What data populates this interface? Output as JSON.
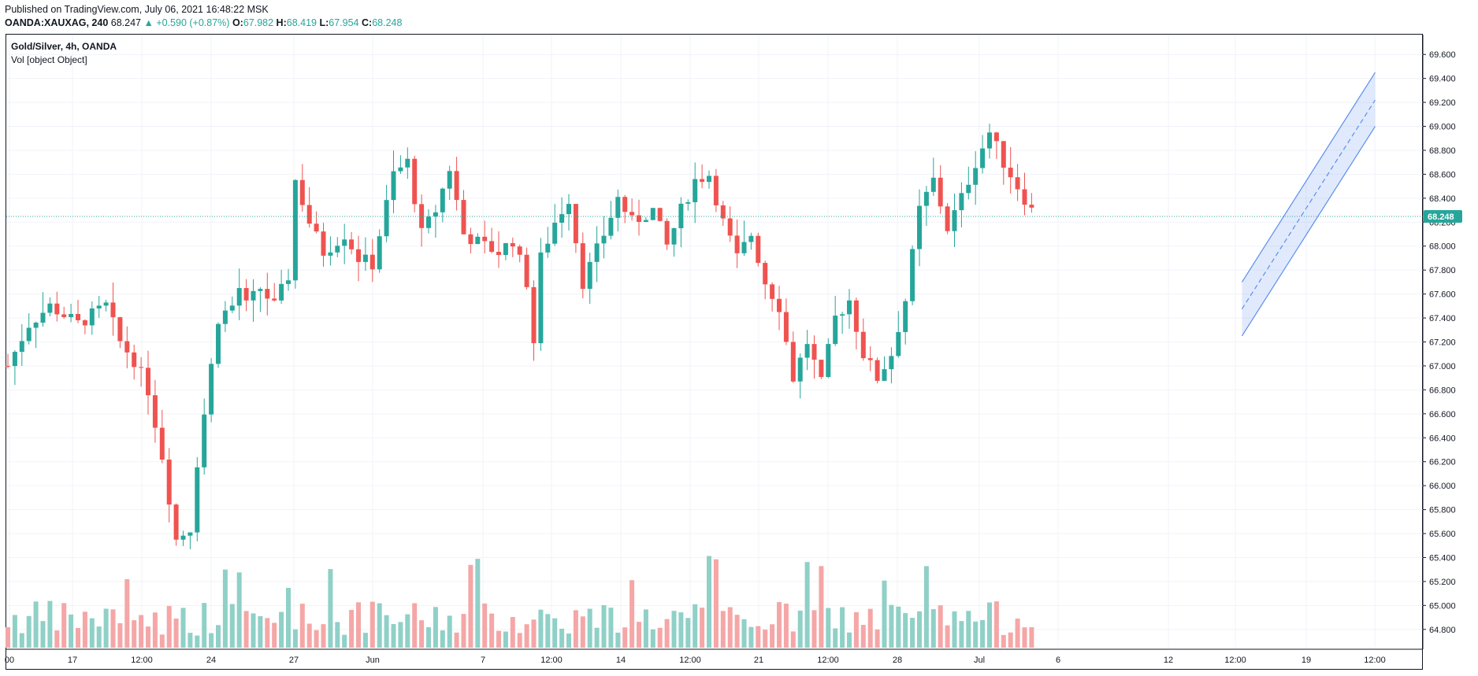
{
  "header": {
    "published": "Published on TradingView.com, July 06, 2021 16:48:22 MSK",
    "symbol": "OANDA:XAUXAG, 240",
    "last": "68.247",
    "change": "▲ +0.590 (+0.87%)",
    "o_label": "O:",
    "o": "67.982",
    "h_label": "H:",
    "h": "68.419",
    "l_label": "L:",
    "l": "67.954",
    "c_label": "C:",
    "c": "68.248"
  },
  "legend": {
    "title": "Gold/Silver, 4h, OANDA",
    "volume": "Vol [object Object]"
  },
  "colors": {
    "up": "#26a69a",
    "down": "#ef5350",
    "up_volume": "#8fd0c7",
    "down_volume": "#f5a6a6",
    "price_line": "#26a69a",
    "channel": "#5b8def",
    "grid": "#f0f3fa"
  },
  "chart_data": {
    "type": "candlestick",
    "interval": "4h",
    "ylim": [
      64.7,
      69.7
    ],
    "y_ticks": [
      "69.600",
      "69.400",
      "69.200",
      "69.000",
      "68.800",
      "68.600",
      "68.400",
      "68.200",
      "68.000",
      "67.800",
      "67.600",
      "67.400",
      "67.200",
      "67.000",
      "66.800",
      "66.600",
      "66.400",
      "66.200",
      "66.000",
      "65.800",
      "65.600",
      "65.400",
      "65.200",
      "65.000",
      "64.800"
    ],
    "x_ticks": [
      "00",
      "17",
      "12:00",
      "24",
      "27",
      "Jun",
      "7",
      "12:00",
      "14",
      "12:00",
      "21",
      "12:00",
      "28",
      "Jul",
      "6",
      "12",
      "12:00",
      "19",
      "12:00"
    ],
    "last_price": "68.248",
    "grid": true,
    "candles_count": 147,
    "path_points": [
      [
        0,
        67.0
      ],
      [
        3,
        67.35
      ],
      [
        6,
        67.5
      ],
      [
        10,
        67.35
      ],
      [
        14,
        67.5
      ],
      [
        16,
        67.2
      ],
      [
        18,
        67.05
      ],
      [
        20,
        66.8
      ],
      [
        22,
        66.25
      ],
      [
        24,
        65.55
      ],
      [
        26,
        65.65
      ],
      [
        27,
        66.2
      ],
      [
        28,
        66.6
      ],
      [
        29,
        67.0
      ],
      [
        30,
        67.4
      ],
      [
        32,
        67.5
      ],
      [
        33,
        67.65
      ],
      [
        34,
        67.5
      ],
      [
        36,
        67.65
      ],
      [
        38,
        67.5
      ],
      [
        40,
        67.75
      ],
      [
        41,
        68.55
      ],
      [
        43,
        68.2
      ],
      [
        45,
        67.95
      ],
      [
        48,
        68.1
      ],
      [
        50,
        67.9
      ],
      [
        52,
        67.85
      ],
      [
        55,
        68.6
      ],
      [
        57,
        68.7
      ],
      [
        59,
        68.1
      ],
      [
        61,
        68.3
      ],
      [
        63,
        68.65
      ],
      [
        65,
        68.1
      ],
      [
        68,
        68.0
      ],
      [
        70,
        67.95
      ],
      [
        72,
        68.05
      ],
      [
        74,
        67.7
      ],
      [
        75,
        67.2
      ],
      [
        76,
        67.9
      ],
      [
        78,
        68.2
      ],
      [
        80,
        68.4
      ],
      [
        82,
        67.7
      ],
      [
        85,
        68.1
      ],
      [
        87,
        68.4
      ],
      [
        89,
        68.2
      ],
      [
        92,
        68.3
      ],
      [
        94,
        68.0
      ],
      [
        96,
        68.3
      ],
      [
        98,
        68.55
      ],
      [
        100,
        68.6
      ],
      [
        102,
        68.2
      ],
      [
        104,
        67.9
      ],
      [
        106,
        68.1
      ],
      [
        108,
        67.7
      ],
      [
        110,
        67.5
      ],
      [
        112,
        66.9
      ],
      [
        114,
        67.2
      ],
      [
        116,
        66.85
      ],
      [
        118,
        67.4
      ],
      [
        120,
        67.55
      ],
      [
        122,
        67.1
      ],
      [
        124,
        66.9
      ],
      [
        126,
        67.1
      ],
      [
        128,
        67.55
      ],
      [
        130,
        68.3
      ],
      [
        132,
        68.55
      ],
      [
        134,
        68.15
      ],
      [
        136,
        68.4
      ],
      [
        138,
        68.7
      ],
      [
        140,
        68.95
      ],
      [
        142,
        68.7
      ],
      [
        144,
        68.5
      ],
      [
        146,
        68.3
      ],
      [
        148,
        68.2
      ],
      [
        150,
        68.0
      ],
      [
        152,
        68.15
      ],
      [
        154,
        68.1
      ],
      [
        156,
        68.35
      ],
      [
        158,
        68.2
      ],
      [
        160,
        67.8
      ],
      [
        162,
        67.7
      ],
      [
        164,
        68.15
      ],
      [
        166,
        67.8
      ],
      [
        168,
        67.5
      ],
      [
        170,
        67.35
      ],
      [
        172,
        67.7
      ],
      [
        174,
        67.8
      ],
      [
        176,
        68.3
      ]
    ],
    "volume_range": [
      0,
      100
    ],
    "forecast_channel": {
      "start": [
        176,
        67.25
      ],
      "end": [
        195,
        69.45
      ],
      "offset": 0.45,
      "midline_to": 69.22
    }
  }
}
